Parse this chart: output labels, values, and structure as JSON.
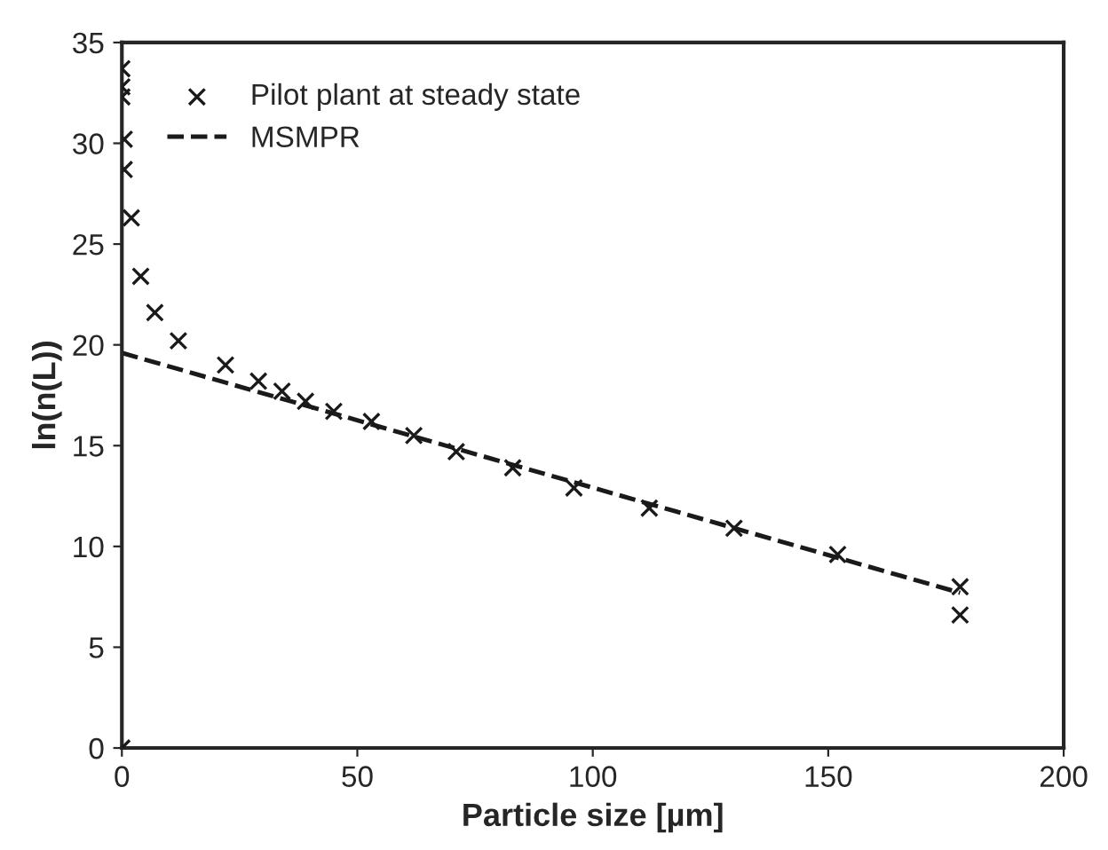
{
  "chart_data": {
    "type": "scatter",
    "xlabel": "Particle size [µm]",
    "ylabel": "ln(n(L))",
    "xlim": [
      0,
      200
    ],
    "xticks": [
      0,
      50,
      100,
      150,
      200
    ],
    "ylim": [
      0,
      35
    ],
    "yticks": [
      0,
      5,
      10,
      15,
      20,
      25,
      30,
      35
    ],
    "grid": false,
    "legend": "top left",
    "series": [
      {
        "name": "Pilot plant at steady state",
        "marker": "cross",
        "color": "#1a1a1a",
        "x": [
          0,
          0,
          0,
          0.5,
          0.5,
          2,
          4,
          7,
          12,
          22,
          29,
          34,
          39,
          45,
          53,
          62,
          71,
          83,
          96,
          112,
          130,
          152,
          178,
          178,
          0
        ],
        "values": [
          33.7,
          32.8,
          32.3,
          30.2,
          28.7,
          26.3,
          23.4,
          21.6,
          20.2,
          19.0,
          18.2,
          17.7,
          17.2,
          16.7,
          16.2,
          15.5,
          14.7,
          13.9,
          12.9,
          11.9,
          10.9,
          9.6,
          8.0,
          6.6,
          0
        ]
      },
      {
        "name": "MSMPR",
        "type": "line",
        "line_style": "dashed",
        "marker": "none",
        "color": "#1a1a1a",
        "x": [
          0,
          178
        ],
        "values": [
          19.6,
          7.7
        ]
      }
    ]
  }
}
